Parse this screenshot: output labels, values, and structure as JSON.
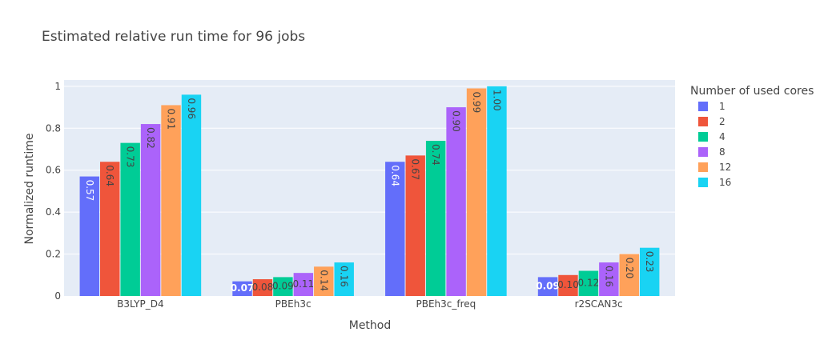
{
  "chart_data": {
    "type": "bar",
    "title": "Estimated relative run time for 96 jobs",
    "xlabel": "Method",
    "ylabel": "Normalized runtime",
    "ylim": [
      0,
      1.03
    ],
    "yticks": [
      0,
      0.2,
      0.4,
      0.6,
      0.8,
      1
    ],
    "ytick_labels": [
      "0",
      "0.2",
      "0.4",
      "0.6",
      "0.8",
      "1"
    ],
    "grid": true,
    "legend_title": "Number of used cores",
    "legend_position": "right",
    "categories": [
      "B3LYP_D4",
      "PBEh3c",
      "PBEh3c_freq",
      "r2SCAN3c"
    ],
    "series": [
      {
        "name": "1",
        "color": "#636efa",
        "values": [
          0.57,
          0.07,
          0.64,
          0.09
        ],
        "labels": [
          "0.57",
          "0.07",
          "0.64",
          "0.09"
        ]
      },
      {
        "name": "2",
        "color": "#ef553b",
        "values": [
          0.64,
          0.08,
          0.67,
          0.1
        ],
        "labels": [
          "0.64",
          "0.08",
          "0.67",
          "0.10"
        ]
      },
      {
        "name": "4",
        "color": "#00cc96",
        "values": [
          0.73,
          0.09,
          0.74,
          0.12
        ],
        "labels": [
          "0.73",
          "0.09",
          "0.74",
          "0.12"
        ]
      },
      {
        "name": "8",
        "color": "#ab63fa",
        "values": [
          0.82,
          0.11,
          0.9,
          0.16
        ],
        "labels": [
          "0.82",
          "0.11",
          "0.90",
          "0.16"
        ]
      },
      {
        "name": "12",
        "color": "#ffa15a",
        "values": [
          0.91,
          0.14,
          0.99,
          0.2
        ],
        "labels": [
          "0.91",
          "0.14",
          "0.99",
          "0.20"
        ]
      },
      {
        "name": "16",
        "color": "#19d3f3",
        "values": [
          0.96,
          0.16,
          1.0,
          0.23
        ],
        "labels": [
          "0.96",
          "0.16",
          "1.00",
          "0.23"
        ]
      }
    ]
  }
}
